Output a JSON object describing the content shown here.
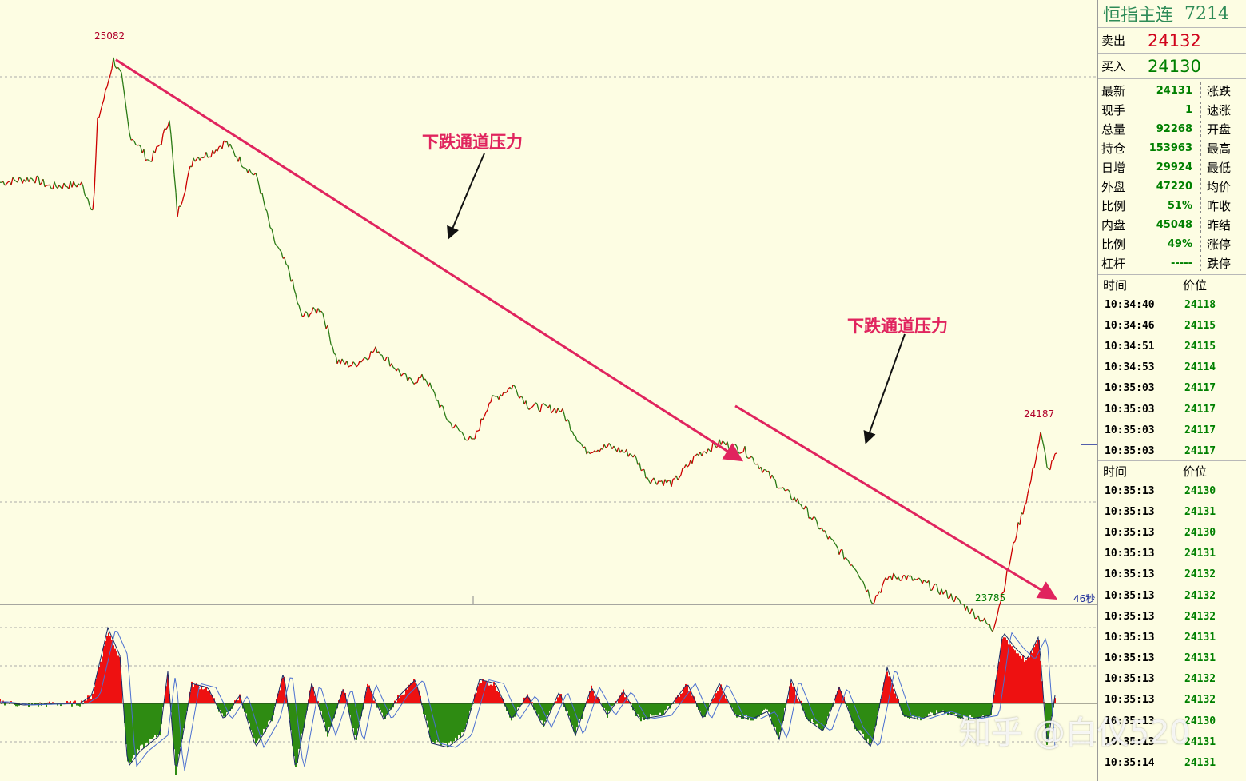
{
  "chart_data": {
    "type": "line",
    "instrument": "恒指主连",
    "y_range": [
      23750,
      25150
    ],
    "high": {
      "label": "25082",
      "value": 25082
    },
    "low": {
      "label": "23785",
      "value": 23785
    },
    "recent_high": {
      "label": "24187",
      "value": 24187
    },
    "price_series": [
      [
        0,
        24780
      ],
      [
        40,
        24790
      ],
      [
        60,
        24770
      ],
      [
        100,
        24775
      ],
      [
        115,
        24710
      ],
      [
        120,
        24930
      ],
      [
        130,
        25000
      ],
      [
        140,
        25082
      ],
      [
        150,
        25040
      ],
      [
        160,
        24900
      ],
      [
        175,
        24860
      ],
      [
        185,
        24830
      ],
      [
        200,
        24880
      ],
      [
        210,
        24940
      ],
      [
        220,
        24700
      ],
      [
        240,
        24840
      ],
      [
        260,
        24850
      ],
      [
        280,
        24880
      ],
      [
        300,
        24830
      ],
      [
        320,
        24790
      ],
      [
        340,
        24640
      ],
      [
        360,
        24560
      ],
      [
        375,
        24450
      ],
      [
        400,
        24470
      ],
      [
        420,
        24340
      ],
      [
        440,
        24330
      ],
      [
        470,
        24370
      ],
      [
        490,
        24330
      ],
      [
        510,
        24290
      ],
      [
        530,
        24300
      ],
      [
        560,
        24190
      ],
      [
        590,
        24140
      ],
      [
        610,
        24240
      ],
      [
        640,
        24280
      ],
      [
        660,
        24230
      ],
      [
        700,
        24220
      ],
      [
        730,
        24120
      ],
      [
        760,
        24130
      ],
      [
        790,
        24110
      ],
      [
        810,
        24050
      ],
      [
        840,
        24040
      ],
      [
        870,
        24110
      ],
      [
        900,
        24140
      ],
      [
        930,
        24120
      ],
      [
        950,
        24080
      ],
      [
        980,
        24020
      ],
      [
        1000,
        23990
      ],
      [
        1020,
        23940
      ],
      [
        1050,
        23870
      ],
      [
        1070,
        23830
      ],
      [
        1090,
        23750
      ],
      [
        1110,
        23810
      ],
      [
        1130,
        23810
      ],
      [
        1160,
        23790
      ],
      [
        1190,
        23760
      ],
      [
        1210,
        23730
      ],
      [
        1230,
        23700
      ],
      [
        1240,
        23680
      ],
      [
        1255,
        23790
      ],
      [
        1270,
        23920
      ],
      [
        1285,
        24020
      ],
      [
        1300,
        24160
      ],
      [
        1310,
        24070
      ],
      [
        1320,
        24110
      ]
    ],
    "oscillator_series": [
      [
        0,
        2
      ],
      [
        30,
        -2
      ],
      [
        60,
        -1
      ],
      [
        100,
        0
      ],
      [
        115,
        10
      ],
      [
        135,
        95
      ],
      [
        150,
        60
      ],
      [
        160,
        -80
      ],
      [
        175,
        -60
      ],
      [
        200,
        -40
      ],
      [
        210,
        40
      ],
      [
        220,
        -90
      ],
      [
        240,
        25
      ],
      [
        260,
        20
      ],
      [
        280,
        -20
      ],
      [
        300,
        10
      ],
      [
        320,
        -55
      ],
      [
        340,
        -20
      ],
      [
        355,
        40
      ],
      [
        370,
        -85
      ],
      [
        390,
        25
      ],
      [
        410,
        -40
      ],
      [
        430,
        20
      ],
      [
        445,
        -50
      ],
      [
        460,
        25
      ],
      [
        480,
        -20
      ],
      [
        500,
        10
      ],
      [
        520,
        30
      ],
      [
        540,
        -50
      ],
      [
        560,
        -55
      ],
      [
        580,
        -40
      ],
      [
        600,
        30
      ],
      [
        620,
        25
      ],
      [
        640,
        -20
      ],
      [
        660,
        10
      ],
      [
        680,
        -30
      ],
      [
        700,
        15
      ],
      [
        720,
        -40
      ],
      [
        740,
        20
      ],
      [
        760,
        -15
      ],
      [
        780,
        15
      ],
      [
        800,
        -20
      ],
      [
        830,
        -15
      ],
      [
        860,
        25
      ],
      [
        880,
        -20
      ],
      [
        900,
        25
      ],
      [
        920,
        -15
      ],
      [
        940,
        -20
      ],
      [
        960,
        -10
      ],
      [
        975,
        -45
      ],
      [
        990,
        30
      ],
      [
        1010,
        -20
      ],
      [
        1030,
        -35
      ],
      [
        1050,
        20
      ],
      [
        1070,
        -30
      ],
      [
        1090,
        -55
      ],
      [
        1110,
        45
      ],
      [
        1130,
        -15
      ],
      [
        1150,
        -20
      ],
      [
        1180,
        -10
      ],
      [
        1210,
        -20
      ],
      [
        1240,
        -15
      ],
      [
        1255,
        90
      ],
      [
        1270,
        70
      ],
      [
        1285,
        55
      ],
      [
        1300,
        85
      ],
      [
        1310,
        -55
      ],
      [
        1320,
        10
      ]
    ],
    "annotations": [
      "下跌通道压力",
      "下跌通道压力"
    ],
    "timer_label": "46秒",
    "grid": true,
    "colors": {
      "line_up": "#cc0000",
      "line_down": "#2a7a14",
      "trend": "#e0245e",
      "osc_pos": "#ee1111",
      "osc_neg": "#2e8b12",
      "osc_line": "#1a2a66"
    }
  },
  "panel": {
    "title": "恒指主连",
    "code": "7214",
    "sell_label": "卖出",
    "sell_value": "24132",
    "buy_label": "买入",
    "buy_value": "24130",
    "stats": [
      {
        "label": "最新",
        "value": "24131",
        "label2": "涨跌"
      },
      {
        "label": "现手",
        "value": "1",
        "label2": "速涨"
      },
      {
        "label": "总量",
        "value": "92268",
        "label2": "开盘"
      },
      {
        "label": "持仓",
        "value": "153963",
        "label2": "最高"
      },
      {
        "label": "日增",
        "value": "29924",
        "label2": "最低"
      },
      {
        "label": "外盘",
        "value": "47220",
        "label2": "均价"
      },
      {
        "label": "比例",
        "value": "51%",
        "label2": "昨收"
      },
      {
        "label": "内盘",
        "value": "45048",
        "label2": "昨结"
      },
      {
        "label": "比例",
        "value": "49%",
        "label2": "涨停"
      },
      {
        "label": "杠杆",
        "value": "-----",
        "label2": "跌停"
      }
    ],
    "ticks1_header": {
      "time": "时间",
      "price": "价位"
    },
    "ticks1": [
      {
        "time": "10:34:40",
        "price": "24118"
      },
      {
        "time": "10:34:46",
        "price": "24115"
      },
      {
        "time": "10:34:51",
        "price": "24115"
      },
      {
        "time": "10:34:53",
        "price": "24114"
      },
      {
        "time": "10:35:03",
        "price": "24117"
      },
      {
        "time": "10:35:03",
        "price": "24117"
      },
      {
        "time": "10:35:03",
        "price": "24117"
      },
      {
        "time": "10:35:03",
        "price": "24117"
      }
    ],
    "ticks2_header": {
      "time": "时间",
      "price": "价位"
    },
    "ticks2": [
      {
        "time": "10:35:13",
        "price": "24130"
      },
      {
        "time": "10:35:13",
        "price": "24131"
      },
      {
        "time": "10:35:13",
        "price": "24130"
      },
      {
        "time": "10:35:13",
        "price": "24131"
      },
      {
        "time": "10:35:13",
        "price": "24132"
      },
      {
        "time": "10:35:13",
        "price": "24132"
      },
      {
        "time": "10:35:13",
        "price": "24132"
      },
      {
        "time": "10:35:13",
        "price": "24131"
      },
      {
        "time": "10:35:13",
        "price": "24131"
      },
      {
        "time": "10:35:13",
        "price": "24132"
      },
      {
        "time": "10:35:13",
        "price": "24132"
      },
      {
        "time": "10:35:13",
        "price": "24130"
      },
      {
        "time": "10:35:13",
        "price": "24131"
      },
      {
        "time": "10:35:14",
        "price": "24131"
      }
    ]
  },
  "watermark": "知乎 @白仪520"
}
